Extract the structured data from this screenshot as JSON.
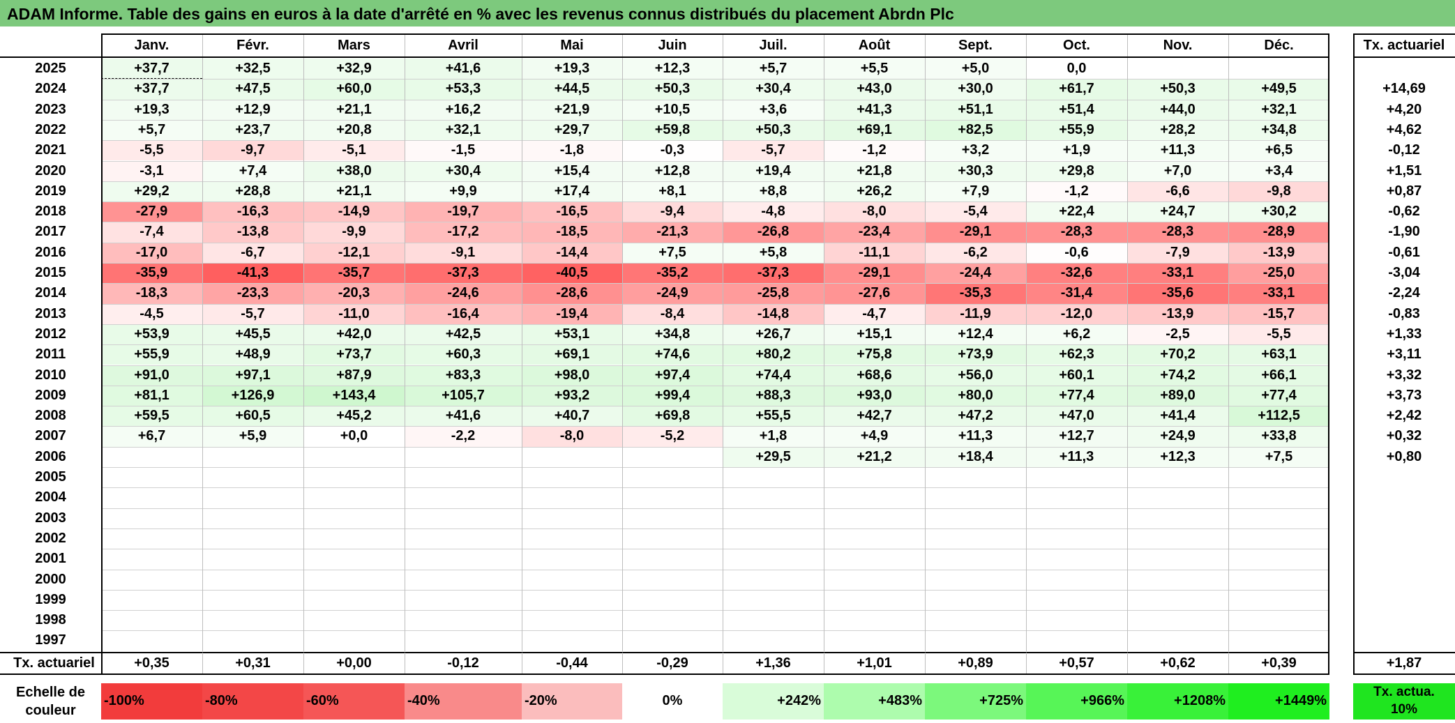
{
  "title": "ADAM Informe. Table des gains en euros à la date d'arrêté en % avec les revenus connus distribués du placement Abrdn Plc",
  "months": [
    "Janv.",
    "Févr.",
    "Mars",
    "Avril",
    "Mai",
    "Juin",
    "Juil.",
    "Août",
    "Sept.",
    "Oct.",
    "Nov.",
    "Déc."
  ],
  "rate_header": "Tx. actuariel",
  "rows": [
    {
      "year": "2025",
      "values": [
        "+37,7",
        "+32,5",
        "+32,9",
        "+41,6",
        "+19,3",
        "+12,3",
        "+5,7",
        "+5,5",
        "+5,0",
        "0,0",
        "",
        ""
      ],
      "rate": ""
    },
    {
      "year": "2024",
      "values": [
        "+37,7",
        "+47,5",
        "+60,0",
        "+53,3",
        "+44,5",
        "+50,3",
        "+30,4",
        "+43,0",
        "+30,0",
        "+61,7",
        "+50,3",
        "+49,5"
      ],
      "rate": "+14,69"
    },
    {
      "year": "2023",
      "values": [
        "+19,3",
        "+12,9",
        "+21,1",
        "+16,2",
        "+21,9",
        "+10,5",
        "+3,6",
        "+41,3",
        "+51,1",
        "+51,4",
        "+44,0",
        "+32,1"
      ],
      "rate": "+4,20"
    },
    {
      "year": "2022",
      "values": [
        "+5,7",
        "+23,7",
        "+20,8",
        "+32,1",
        "+29,7",
        "+59,8",
        "+50,3",
        "+69,1",
        "+82,5",
        "+55,9",
        "+28,2",
        "+34,8"
      ],
      "rate": "+4,62"
    },
    {
      "year": "2021",
      "values": [
        "-5,5",
        "-9,7",
        "-5,1",
        "-1,5",
        "-1,8",
        "-0,3",
        "-5,7",
        "-1,2",
        "+3,2",
        "+1,9",
        "+11,3",
        "+6,5"
      ],
      "rate": "-0,12"
    },
    {
      "year": "2020",
      "values": [
        "-3,1",
        "+7,4",
        "+38,0",
        "+30,4",
        "+15,4",
        "+12,8",
        "+19,4",
        "+21,8",
        "+30,3",
        "+29,8",
        "+7,0",
        "+3,4"
      ],
      "rate": "+1,51"
    },
    {
      "year": "2019",
      "values": [
        "+29,2",
        "+28,8",
        "+21,1",
        "+9,9",
        "+17,4",
        "+8,1",
        "+8,8",
        "+26,2",
        "+7,9",
        "-1,2",
        "-6,6",
        "-9,8"
      ],
      "rate": "+0,87"
    },
    {
      "year": "2018",
      "values": [
        "-27,9",
        "-16,3",
        "-14,9",
        "-19,7",
        "-16,5",
        "-9,4",
        "-4,8",
        "-8,0",
        "-5,4",
        "+22,4",
        "+24,7",
        "+30,2"
      ],
      "rate": "-0,62"
    },
    {
      "year": "2017",
      "values": [
        "-7,4",
        "-13,8",
        "-9,9",
        "-17,2",
        "-18,5",
        "-21,3",
        "-26,8",
        "-23,4",
        "-29,1",
        "-28,3",
        "-28,3",
        "-28,9"
      ],
      "rate": "-1,90"
    },
    {
      "year": "2016",
      "values": [
        "-17,0",
        "-6,7",
        "-12,1",
        "-9,1",
        "-14,4",
        "+7,5",
        "+5,8",
        "-11,1",
        "-6,2",
        "-0,6",
        "-7,9",
        "-13,9"
      ],
      "rate": "-0,61"
    },
    {
      "year": "2015",
      "values": [
        "-35,9",
        "-41,3",
        "-35,7",
        "-37,3",
        "-40,5",
        "-35,2",
        "-37,3",
        "-29,1",
        "-24,4",
        "-32,6",
        "-33,1",
        "-25,0"
      ],
      "rate": "-3,04"
    },
    {
      "year": "2014",
      "values": [
        "-18,3",
        "-23,3",
        "-20,3",
        "-24,6",
        "-28,6",
        "-24,9",
        "-25,8",
        "-27,6",
        "-35,3",
        "-31,4",
        "-35,6",
        "-33,1"
      ],
      "rate": "-2,24"
    },
    {
      "year": "2013",
      "values": [
        "-4,5",
        "-5,7",
        "-11,0",
        "-16,4",
        "-19,4",
        "-8,4",
        "-14,8",
        "-4,7",
        "-11,9",
        "-12,0",
        "-13,9",
        "-15,7"
      ],
      "rate": "-0,83"
    },
    {
      "year": "2012",
      "values": [
        "+53,9",
        "+45,5",
        "+42,0",
        "+42,5",
        "+53,1",
        "+34,8",
        "+26,7",
        "+15,1",
        "+12,4",
        "+6,2",
        "-2,5",
        "-5,5"
      ],
      "rate": "+1,33"
    },
    {
      "year": "2011",
      "values": [
        "+55,9",
        "+48,9",
        "+73,7",
        "+60,3",
        "+69,1",
        "+74,6",
        "+80,2",
        "+75,8",
        "+73,9",
        "+62,3",
        "+70,2",
        "+63,1"
      ],
      "rate": "+3,11"
    },
    {
      "year": "2010",
      "values": [
        "+91,0",
        "+97,1",
        "+87,9",
        "+83,3",
        "+98,0",
        "+97,4",
        "+74,4",
        "+68,6",
        "+56,0",
        "+60,1",
        "+74,2",
        "+66,1"
      ],
      "rate": "+3,32"
    },
    {
      "year": "2009",
      "values": [
        "+81,1",
        "+126,9",
        "+143,4",
        "+105,7",
        "+93,2",
        "+99,4",
        "+88,3",
        "+93,0",
        "+80,0",
        "+77,4",
        "+89,0",
        "+77,4"
      ],
      "rate": "+3,73"
    },
    {
      "year": "2008",
      "values": [
        "+59,5",
        "+60,5",
        "+45,2",
        "+41,6",
        "+40,7",
        "+69,8",
        "+55,5",
        "+42,7",
        "+47,2",
        "+47,0",
        "+41,4",
        "+112,5"
      ],
      "rate": "+2,42"
    },
    {
      "year": "2007",
      "values": [
        "+6,7",
        "+5,9",
        "+0,0",
        "-2,2",
        "-8,0",
        "-5,2",
        "+1,8",
        "+4,9",
        "+11,3",
        "+12,7",
        "+24,9",
        "+33,8"
      ],
      "rate": "+0,32"
    },
    {
      "year": "2006",
      "values": [
        "",
        "",
        "",
        "",
        "",
        "",
        "+29,5",
        "+21,2",
        "+18,4",
        "+11,3",
        "+12,3",
        "+7,5"
      ],
      "rate": "+0,80"
    },
    {
      "year": "2005",
      "values": [
        "",
        "",
        "",
        "",
        "",
        "",
        "",
        "",
        "",
        "",
        "",
        ""
      ],
      "rate": ""
    },
    {
      "year": "2004",
      "values": [
        "",
        "",
        "",
        "",
        "",
        "",
        "",
        "",
        "",
        "",
        "",
        ""
      ],
      "rate": ""
    },
    {
      "year": "2003",
      "values": [
        "",
        "",
        "",
        "",
        "",
        "",
        "",
        "",
        "",
        "",
        "",
        ""
      ],
      "rate": ""
    },
    {
      "year": "2002",
      "values": [
        "",
        "",
        "",
        "",
        "",
        "",
        "",
        "",
        "",
        "",
        "",
        ""
      ],
      "rate": ""
    },
    {
      "year": "2001",
      "values": [
        "",
        "",
        "",
        "",
        "",
        "",
        "",
        "",
        "",
        "",
        "",
        ""
      ],
      "rate": ""
    },
    {
      "year": "2000",
      "values": [
        "",
        "",
        "",
        "",
        "",
        "",
        "",
        "",
        "",
        "",
        "",
        ""
      ],
      "rate": ""
    },
    {
      "year": "1999",
      "values": [
        "",
        "",
        "",
        "",
        "",
        "",
        "",
        "",
        "",
        "",
        "",
        ""
      ],
      "rate": ""
    },
    {
      "year": "1998",
      "values": [
        "",
        "",
        "",
        "",
        "",
        "",
        "",
        "",
        "",
        "",
        "",
        ""
      ],
      "rate": ""
    },
    {
      "year": "1997",
      "values": [
        "",
        "",
        "",
        "",
        "",
        "",
        "",
        "",
        "",
        "",
        "",
        ""
      ],
      "rate": ""
    }
  ],
  "footer": {
    "label": "Tx. actuariel",
    "values": [
      "+0,35",
      "+0,31",
      "+0,00",
      "-0,12",
      "-0,44",
      "-0,29",
      "+1,36",
      "+1,01",
      "+0,89",
      "+0,57",
      "+0,62",
      "+0,39"
    ],
    "total": "+1,87"
  },
  "scale": {
    "label": "Echelle de couleur",
    "items": [
      {
        "text": "-100%",
        "color": "#f23c3c",
        "align": "left"
      },
      {
        "text": "-80%",
        "color": "#f34747",
        "align": "left"
      },
      {
        "text": "-60%",
        "color": "#f55656",
        "align": "left"
      },
      {
        "text": "-40%",
        "color": "#f98a8a",
        "align": "left"
      },
      {
        "text": "-20%",
        "color": "#fbbdbd",
        "align": "left"
      },
      {
        "text": "0%",
        "color": "#ffffff",
        "align": "center"
      },
      {
        "text": "+242%",
        "color": "#d9fcd9",
        "align": "right"
      },
      {
        "text": "+483%",
        "color": "#adfcad",
        "align": "right"
      },
      {
        "text": "+725%",
        "color": "#7cf87c",
        "align": "right"
      },
      {
        "text": "+966%",
        "color": "#57f557",
        "align": "right"
      },
      {
        "text": "+1208%",
        "color": "#39f139",
        "align": "right"
      },
      {
        "text": "+1449%",
        "color": "#1fee1f",
        "align": "right"
      }
    ],
    "rate_label": "Tx. actua. 10%",
    "rate_color": "#1fe51f"
  },
  "colors": {
    "title_bg": "#7dc97d",
    "negative_base": "#f04848",
    "positive_base": "#9cf09c"
  }
}
